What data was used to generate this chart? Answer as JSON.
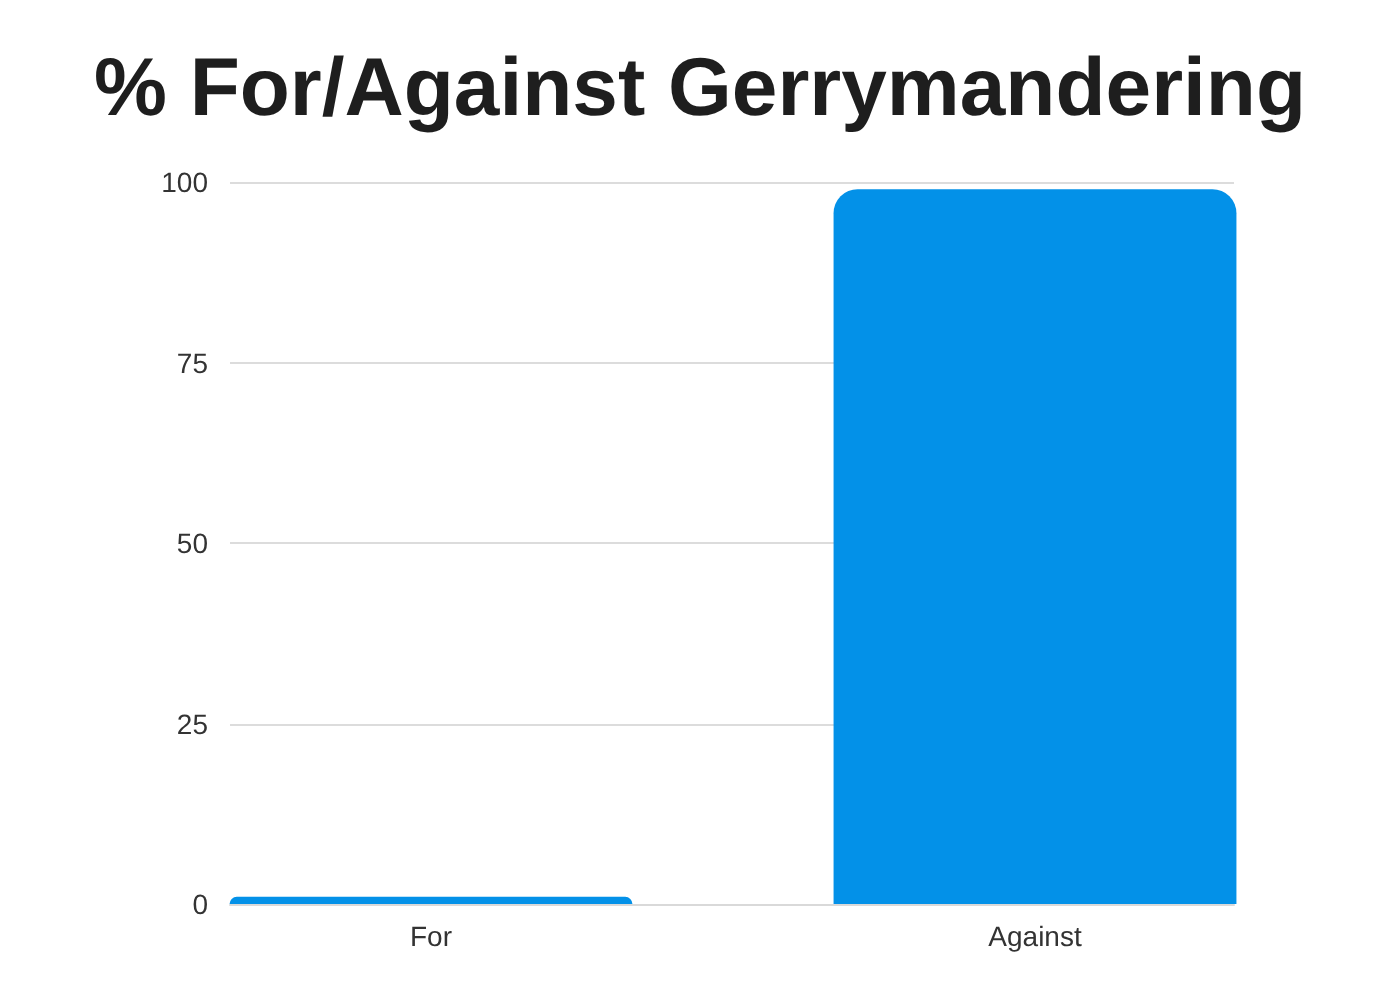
{
  "chart_data": {
    "type": "bar",
    "title": "% For/Against Gerrymandering",
    "categories": [
      "For",
      "Against"
    ],
    "values": [
      1,
      99
    ],
    "color": "#0391e8",
    "ylim": [
      0,
      100
    ],
    "yticks": [
      0,
      25,
      50,
      75,
      100
    ],
    "grid": "y"
  }
}
